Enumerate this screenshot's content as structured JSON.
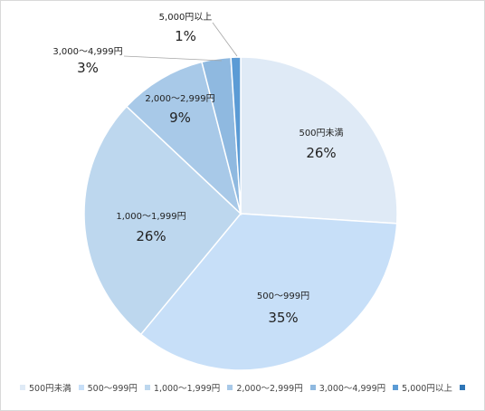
{
  "chart_data": {
    "type": "pie",
    "title": "",
    "categories": [
      "500円未満",
      "500～999円",
      "1,000～1,999円",
      "2,000～2,999円",
      "3,000～4,999円",
      "5,000円以上",
      ""
    ],
    "values": [
      26,
      35,
      26,
      9,
      3,
      1,
      0
    ],
    "labels": [
      "26%",
      "35%",
      "26%",
      "9%",
      "3%",
      "1%",
      ""
    ],
    "colors": [
      "#dfeaf6",
      "#c7dff8",
      "#bdd7ee",
      "#a8c9e8",
      "#8fb9e0",
      "#5b9bd5",
      "#2e75b6"
    ],
    "legend_position": "bottom"
  }
}
